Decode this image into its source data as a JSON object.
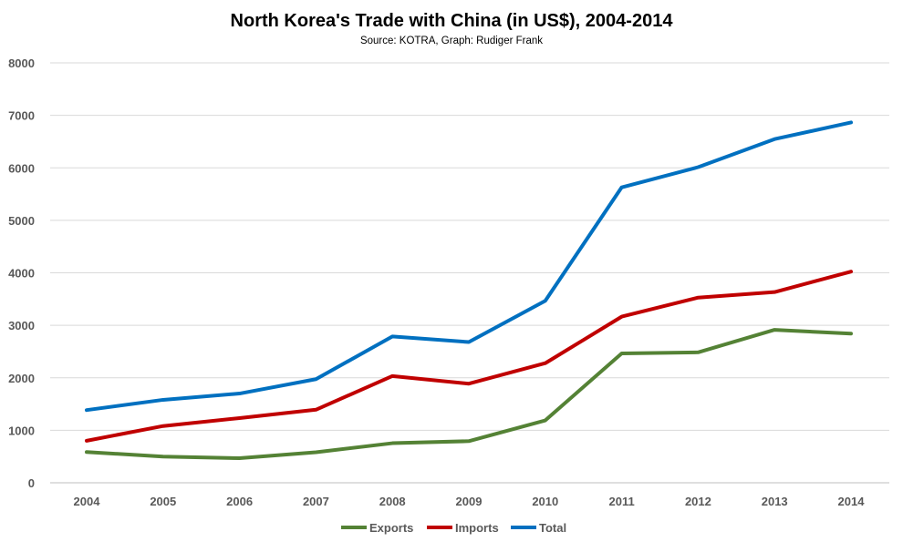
{
  "chart_data": {
    "type": "line",
    "title": "North Korea's Trade with China (in US$), 2004-2014",
    "subtitle": "Source: KOTRA, Graph: Rudiger Frank",
    "categories": [
      "2004",
      "2005",
      "2006",
      "2007",
      "2008",
      "2009",
      "2010",
      "2011",
      "2012",
      "2013",
      "2014"
    ],
    "series": [
      {
        "name": "Exports",
        "color": "#548235",
        "values": [
          586,
          499,
          468,
          582,
          754,
          793,
          1188,
          2464,
          2485,
          2914,
          2841
        ]
      },
      {
        "name": "Imports",
        "color": "#C00000",
        "values": [
          800,
          1081,
          1232,
          1392,
          2033,
          1888,
          2278,
          3165,
          3528,
          3633,
          4023
        ]
      },
      {
        "name": "Total",
        "color": "#0070C0",
        "values": [
          1385,
          1580,
          1700,
          1974,
          2787,
          2681,
          3466,
          5629,
          6013,
          6547,
          6864
        ]
      }
    ],
    "ylim": [
      0,
      8000
    ],
    "yticks": [
      0,
      1000,
      2000,
      3000,
      4000,
      5000,
      6000,
      7000,
      8000
    ],
    "xlabel": "",
    "ylabel": "",
    "grid": "horizontal",
    "legend": "bottom"
  }
}
